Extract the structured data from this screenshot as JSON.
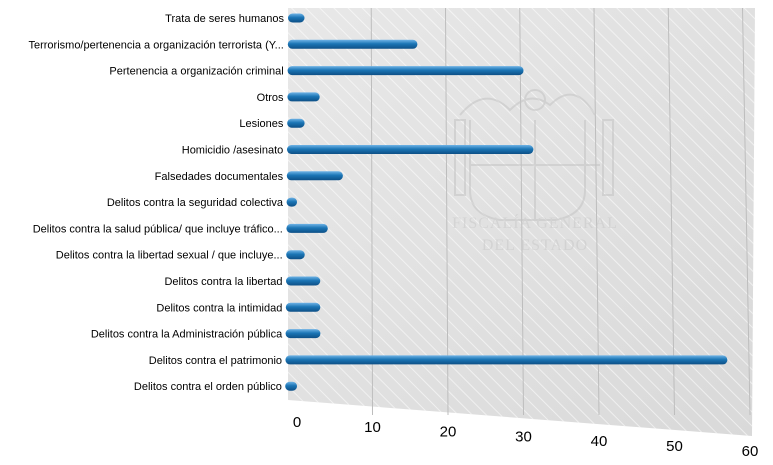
{
  "chart_data": {
    "type": "bar",
    "orientation": "horizontal",
    "categories": [
      "Trata de seres humanos",
      "Terrorismo/pertenencia a organización terrorista (Y...",
      "Pertenencia a organización criminal",
      "Otros",
      "Lesiones",
      "Homicidio /asesinato",
      "Falsedades documentales",
      "Delitos contra la seguridad colectiva",
      "Delitos contra la salud pública/ que incluye tráfico...",
      "Delitos contra la libertad sexual / que incluye...",
      "Delitos contra la libertad",
      "Delitos contra la intimidad",
      "Delitos contra la Administración pública",
      "Delitos contra el patrimonio",
      "Delitos contra el orden público"
    ],
    "values": [
      1,
      16,
      30,
      3,
      1,
      31,
      6,
      0,
      4,
      1,
      3,
      3,
      3,
      55,
      0
    ],
    "xlim": [
      0,
      60
    ],
    "xticks": [
      "0",
      "10",
      "20",
      "30",
      "40",
      "50",
      "60"
    ],
    "grid": true,
    "bar_color": "#1b75b5",
    "watermark": [
      "FISCALÍA GENERAL",
      "DEL ESTADO"
    ]
  }
}
